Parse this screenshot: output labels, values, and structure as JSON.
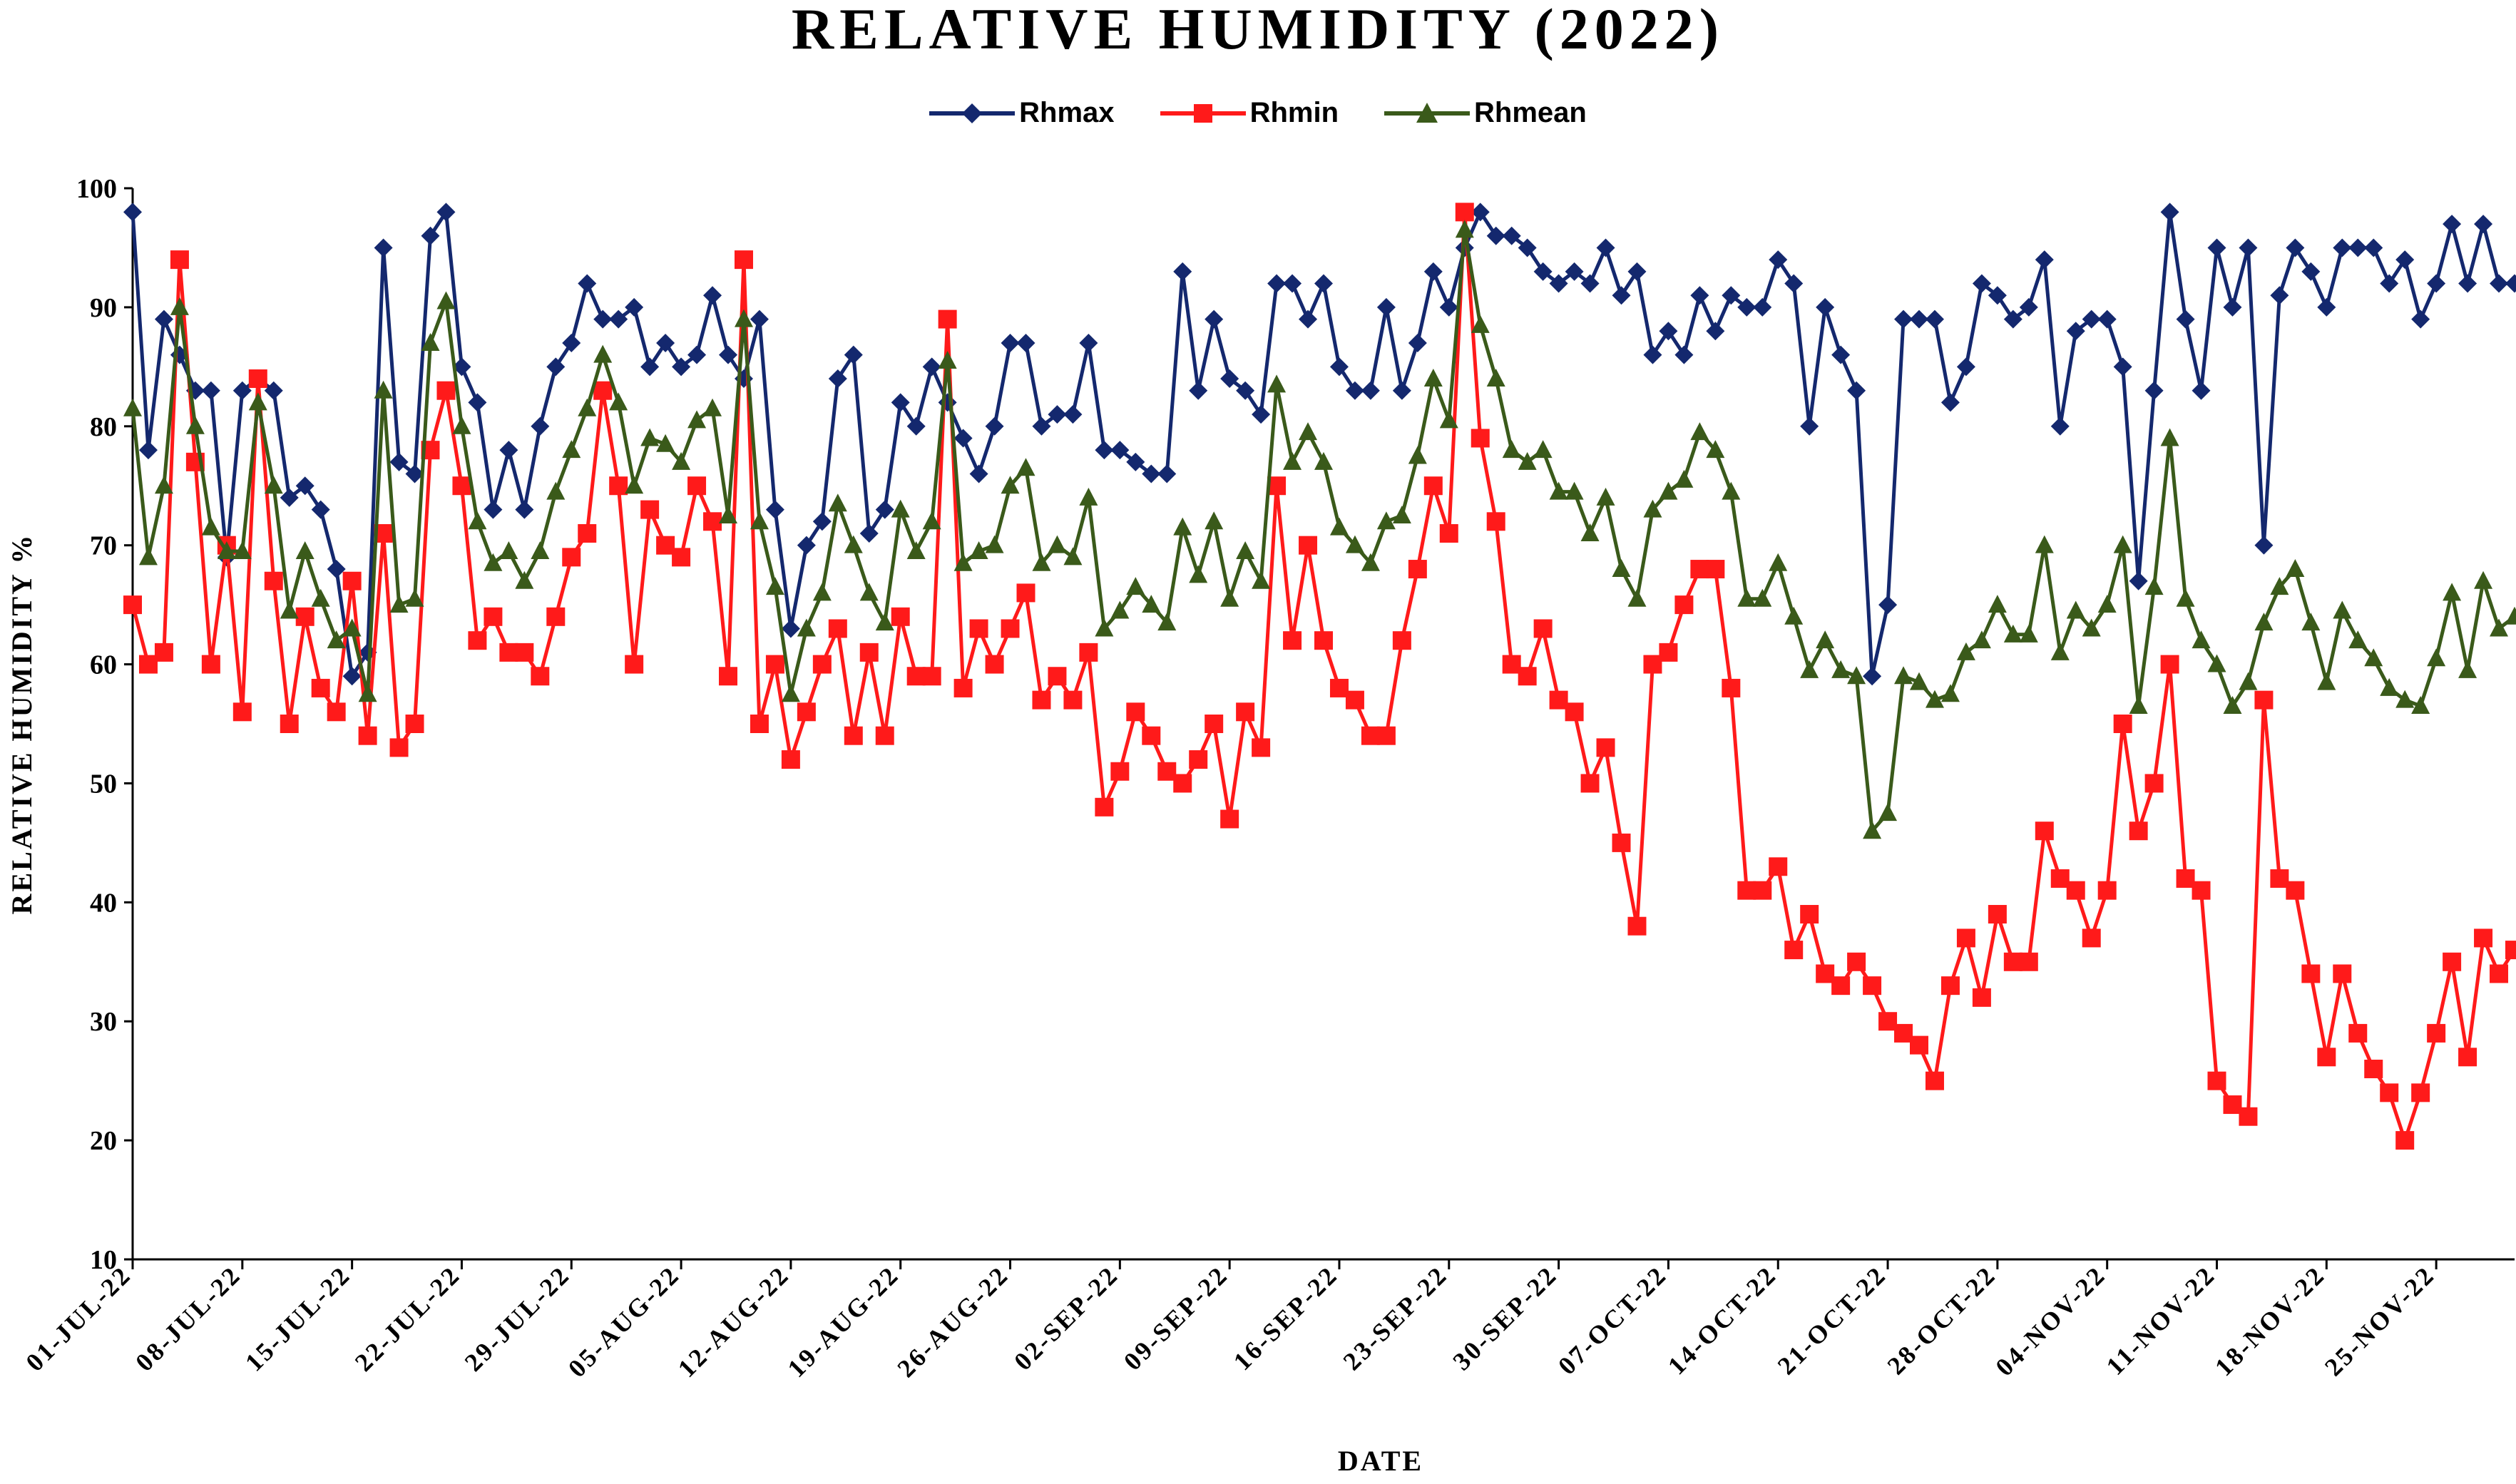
{
  "chart_data": {
    "type": "line",
    "title": "RELATIVE HUMIDITY (2022)",
    "xlabel": "DATE",
    "ylabel": "RELATIVE HUMIDITY %",
    "ylim": [
      10,
      100
    ],
    "yticks": [
      10,
      20,
      30,
      40,
      50,
      60,
      70,
      80,
      90,
      100
    ],
    "x_start": "2022-07-01",
    "x_tick_labels": [
      "01-JUL-22",
      "08-JUL-22",
      "15-JUL-22",
      "22-JUL-22",
      "29-JUL-22",
      "05-AUG-22",
      "12-AUG-22",
      "19-AUG-22",
      "26-AUG-22",
      "02-SEP-22",
      "09-SEP-22",
      "16-SEP-22",
      "23-SEP-22",
      "30-SEP-22",
      "07-OCT-22",
      "14-OCT-22",
      "21-OCT-22",
      "28-OCT-22",
      "04-NOV-22",
      "11-NOV-22",
      "18-NOV-22",
      "25-NOV-22"
    ],
    "grid": false,
    "legend_position": "top-center",
    "series": [
      {
        "name": "Rhmax",
        "color": "#14286e",
        "marker": "diamond",
        "values": [
          98,
          78,
          89,
          86,
          83,
          83,
          69,
          83,
          84,
          83,
          74,
          75,
          73,
          68,
          59,
          61,
          95,
          77,
          76,
          96,
          98,
          85,
          82,
          73,
          78,
          73,
          80,
          85,
          87,
          92,
          89,
          89,
          90,
          85,
          87,
          85,
          86,
          91,
          86,
          84,
          89,
          73,
          63,
          70,
          72,
          84,
          86,
          71,
          73,
          82,
          80,
          85,
          82,
          79,
          76,
          80,
          87,
          87,
          80,
          81,
          81,
          87,
          78,
          78,
          77,
          76,
          76,
          93,
          83,
          89,
          84,
          83,
          81,
          92,
          92,
          89,
          92,
          85,
          83,
          83,
          90,
          83,
          87,
          93,
          90,
          95,
          98,
          96,
          96,
          95,
          93,
          92,
          93,
          92,
          95,
          91,
          93,
          86,
          88,
          86,
          91,
          88,
          91,
          90,
          90,
          94,
          92,
          80,
          90,
          86,
          83,
          59,
          65,
          89,
          89,
          89,
          82,
          85,
          92,
          91,
          89,
          90,
          94,
          80,
          88,
          89,
          89,
          85,
          67,
          83,
          98,
          89,
          83,
          95,
          90,
          95,
          70,
          91,
          95,
          93,
          90,
          95,
          95,
          95,
          92,
          94,
          89,
          92,
          97,
          92,
          97,
          92,
          92
        ]
      },
      {
        "name": "Rhmin",
        "color": "#ff1a1a",
        "marker": "square",
        "values": [
          65,
          60,
          61,
          94,
          77,
          60,
          70,
          56,
          84,
          67,
          55,
          64,
          58,
          56,
          67,
          54,
          71,
          53,
          55,
          78,
          83,
          75,
          62,
          64,
          61,
          61,
          59,
          64,
          69,
          71,
          83,
          75,
          60,
          73,
          70,
          69,
          75,
          72,
          59,
          94,
          55,
          60,
          52,
          56,
          60,
          63,
          54,
          61,
          54,
          64,
          59,
          59,
          89,
          58,
          63,
          60,
          63,
          66,
          57,
          59,
          57,
          61,
          48,
          51,
          56,
          54,
          51,
          50,
          52,
          55,
          47,
          56,
          53,
          75,
          62,
          70,
          62,
          58,
          57,
          54,
          54,
          62,
          68,
          75,
          71,
          98,
          79,
          72,
          60,
          59,
          63,
          57,
          56,
          50,
          53,
          45,
          38,
          60,
          61,
          65,
          68,
          68,
          58,
          41,
          41,
          43,
          36,
          39,
          34,
          33,
          35,
          33,
          30,
          29,
          28,
          25,
          33,
          37,
          32,
          39,
          35,
          35,
          46,
          42,
          41,
          37,
          41,
          55,
          46,
          50,
          60,
          42,
          41,
          25,
          23,
          22,
          57,
          42,
          41,
          34,
          27,
          34,
          29,
          26,
          24,
          20,
          24,
          29,
          35,
          27,
          37,
          34,
          36
        ]
      },
      {
        "name": "Rhmean",
        "color": "#3a5a1a",
        "marker": "triangle",
        "values": [
          81.5,
          69,
          75,
          90,
          80,
          71.5,
          69.5,
          69.5,
          82,
          75,
          64.5,
          69.5,
          65.5,
          62,
          63,
          57.5,
          83,
          65,
          65.5,
          87,
          90.5,
          80,
          72,
          68.5,
          69.5,
          67,
          69.5,
          74.5,
          78,
          81.5,
          86,
          82,
          75,
          79,
          78.5,
          77,
          80.5,
          81.5,
          72.5,
          89,
          72,
          66.5,
          57.5,
          63,
          66,
          73.5,
          70,
          66,
          63.5,
          73,
          69.5,
          72,
          85.5,
          68.5,
          69.5,
          70,
          75,
          76.5,
          68.5,
          70,
          69,
          74,
          63,
          64.5,
          66.5,
          65,
          63.5,
          71.5,
          67.5,
          72,
          65.5,
          69.5,
          67,
          83.5,
          77,
          79.5,
          77,
          71.5,
          70,
          68.5,
          72,
          72.5,
          77.5,
          84,
          80.5,
          96.5,
          88.5,
          84,
          78,
          77,
          78,
          74.5,
          74.5,
          71,
          74,
          68,
          65.5,
          73,
          74.5,
          75.5,
          79.5,
          78,
          74.5,
          65.5,
          65.5,
          68.5,
          64,
          59.5,
          62,
          59.5,
          59,
          46,
          47.5,
          59,
          58.5,
          57,
          57.5,
          61,
          62,
          65,
          62.5,
          62.5,
          70,
          61,
          64.5,
          63,
          65,
          70,
          56.5,
          66.5,
          79,
          65.5,
          62,
          60,
          56.5,
          58.5,
          63.5,
          66.5,
          68,
          63.5,
          58.5,
          64.5,
          62,
          60.5,
          58,
          57,
          56.5,
          60.5,
          66,
          59.5,
          67,
          63,
          64
        ]
      }
    ]
  }
}
